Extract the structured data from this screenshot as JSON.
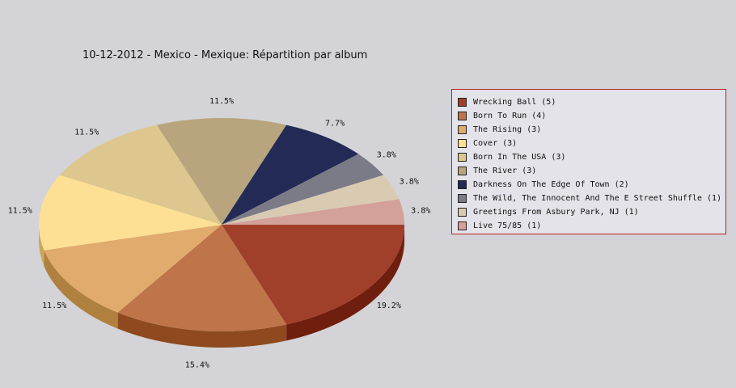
{
  "chart_data": {
    "type": "pie",
    "title": "10-12-2012 - Mexico - Mexique:  Répartition par album",
    "slices": [
      {
        "label": "Wrecking Ball (5)",
        "value": 5,
        "percent_label": "19.2%",
        "color": "#a0402a",
        "side": "#701e0e"
      },
      {
        "label": "Born To Run (4)",
        "value": 4,
        "percent_label": "15.4%",
        "color": "#bf744a",
        "side": "#8e4a1e"
      },
      {
        "label": "The Rising (3)",
        "value": 3,
        "percent_label": "11.5%",
        "color": "#e0ab6d",
        "side": "#b0803e"
      },
      {
        "label": "Cover (3)",
        "value": 3,
        "percent_label": "11.5%",
        "color": "#fde093",
        "side": "#caa85a"
      },
      {
        "label": "Born In The USA (3)",
        "value": 3,
        "percent_label": "11.5%",
        "color": "#dec78e",
        "side": "#a8935a"
      },
      {
        "label": "The River (3)",
        "value": 3,
        "percent_label": "11.5%",
        "color": "#b8a57d",
        "side": "#867450"
      },
      {
        "label": "Darkness On The Edge Of Town (2)",
        "value": 2,
        "percent_label": "7.7%",
        "color": "#222a55",
        "side": "#10163a"
      },
      {
        "label": "The Wild, The Innocent And The E Street Shuffle (1)",
        "value": 1,
        "percent_label": "3.8%",
        "color": "#7b7a87",
        "side": "#555460"
      },
      {
        "label": "Greetings From Asbury Park, NJ (1)",
        "value": 1,
        "percent_label": "3.8%",
        "color": "#d9cbb2",
        "side": "#a99b82"
      },
      {
        "label": "Live 75/85 (1)",
        "value": 1,
        "percent_label": "3.8%",
        "color": "#d4a19a",
        "side": "#a4716a"
      }
    ],
    "legend_placement": "right",
    "grid": false
  }
}
